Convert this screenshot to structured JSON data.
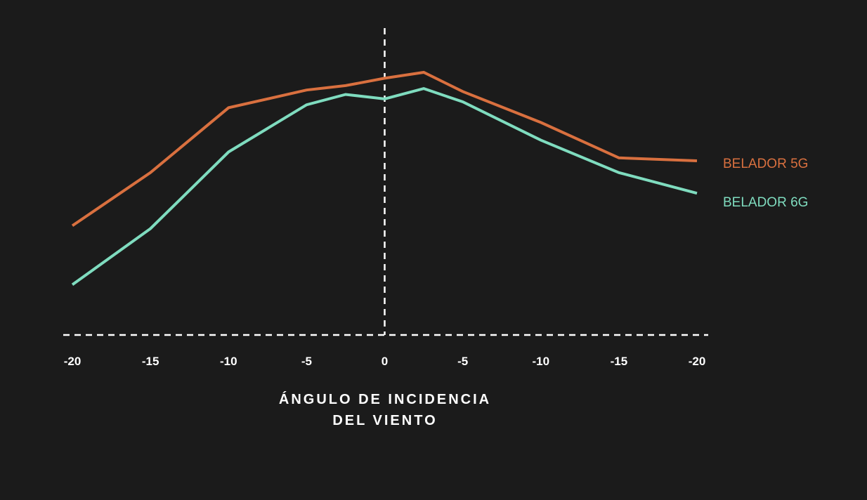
{
  "chart_data": {
    "type": "line",
    "x_tick_labels": [
      "-20",
      "-15",
      "-10",
      "-5",
      "0",
      "-5",
      "-10",
      "-15",
      "-20"
    ],
    "xlabel": [
      "ÁNGULO DE INCIDENCIA",
      "DEL VIENTO"
    ],
    "xlim": [
      -20,
      20
    ],
    "ylim": [
      0,
      100
    ],
    "reference_line_at_x": 0,
    "series": [
      {
        "name": "BELADOR 5G",
        "color": "#d9703f",
        "x": [
          -20,
          -15,
          -10,
          -5,
          -2.5,
          0,
          2.5,
          5,
          10,
          15,
          20
        ],
        "y": [
          33,
          51,
          73,
          79,
          80.5,
          83,
          85,
          78.5,
          68,
          56,
          55
        ]
      },
      {
        "name": "BELADOR 6G",
        "color": "#7fdcbf",
        "x": [
          -20,
          -15,
          -10,
          -5,
          -2.5,
          0,
          2.5,
          5,
          10,
          15,
          20
        ],
        "y": [
          13,
          32,
          58,
          74,
          77.5,
          76,
          79.5,
          75,
          62,
          51,
          44
        ]
      }
    ]
  }
}
